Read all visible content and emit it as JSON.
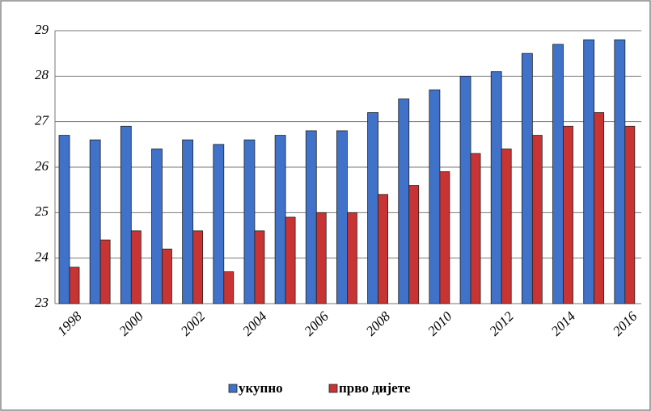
{
  "chart_data": {
    "type": "bar",
    "categories": [
      "1998",
      null,
      "2000",
      null,
      "2002",
      null,
      "2004",
      null,
      "2006",
      null,
      "2008",
      null,
      "2010",
      null,
      "2012",
      null,
      "2014",
      null,
      "2016"
    ],
    "series": [
      {
        "name": "укупно",
        "color": "#3f72c8",
        "values": [
          26.7,
          26.6,
          26.9,
          26.4,
          26.6,
          26.5,
          26.6,
          26.7,
          26.8,
          26.8,
          27.2,
          27.5,
          27.7,
          28.0,
          28.1,
          28.5,
          28.7,
          28.8,
          28.8
        ]
      },
      {
        "name": "прво дијете",
        "color": "#c83434",
        "values": [
          23.8,
          24.4,
          24.6,
          24.2,
          24.6,
          23.7,
          24.6,
          24.9,
          25.0,
          25.0,
          25.4,
          25.6,
          25.9,
          26.3,
          26.4,
          26.7,
          26.9,
          27.2,
          26.9
        ]
      }
    ],
    "ylim": [
      23,
      29
    ],
    "yticks": [
      23,
      24,
      25,
      26,
      27,
      28,
      29
    ],
    "grid": true,
    "legend": "bottom"
  }
}
